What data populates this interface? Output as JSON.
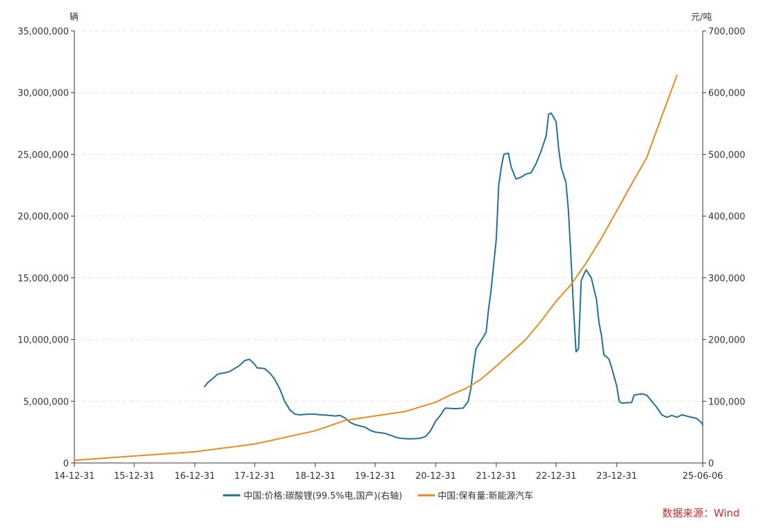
{
  "chart_data": {
    "type": "line",
    "left_axis_unit": "辆",
    "right_axis_unit": "元/吨",
    "left_ylim": [
      0,
      35000000
    ],
    "right_ylim": [
      0,
      700000
    ],
    "left_ticks": [
      "0",
      "5,000,000",
      "10,000,000",
      "15,000,000",
      "20,000,000",
      "25,000,000",
      "30,000,000",
      "35,000,000"
    ],
    "right_ticks": [
      "0",
      "100,000",
      "200,000",
      "300,000",
      "400,000",
      "500,000",
      "600,000",
      "700,000"
    ],
    "x_ticks": [
      "14-12-31",
      "15-12-31",
      "16-12-31",
      "17-12-31",
      "18-12-31",
      "19-12-31",
      "20-12-31",
      "21-12-31",
      "22-12-31",
      "23-12-31",
      "25-06-06"
    ],
    "grid": "horizontal-dashed",
    "legend_position": "bottom",
    "source": "数据来源：Wind",
    "series": [
      {
        "name": "中国:价格:碳酸锂(99.5%电,国产)(右轴)",
        "axis": "right",
        "color": "#1f6f96",
        "points": [
          [
            "2017-03-01",
            124000
          ],
          [
            "2017-03-20",
            130000
          ],
          [
            "2017-04-20",
            137000
          ],
          [
            "2017-05-20",
            144000
          ],
          [
            "2017-06-30",
            146000
          ],
          [
            "2017-07-31",
            148000
          ],
          [
            "2017-08-31",
            153000
          ],
          [
            "2017-09-30",
            158000
          ],
          [
            "2017-10-31",
            166000
          ],
          [
            "2017-11-30",
            168000
          ],
          [
            "2017-12-31",
            160000
          ],
          [
            "2018-01-15",
            154000
          ],
          [
            "2018-02-28",
            153000
          ],
          [
            "2018-03-31",
            146000
          ],
          [
            "2018-04-30",
            136000
          ],
          [
            "2018-05-31",
            120000
          ],
          [
            "2018-06-30",
            100000
          ],
          [
            "2018-07-31",
            86000
          ],
          [
            "2018-08-31",
            79000
          ],
          [
            "2018-09-30",
            78000
          ],
          [
            "2018-11-15",
            79000
          ],
          [
            "2018-12-31",
            79000
          ],
          [
            "2019-01-31",
            78000
          ],
          [
            "2019-03-31",
            77000
          ],
          [
            "2019-04-30",
            76000
          ],
          [
            "2019-05-31",
            77000
          ],
          [
            "2019-06-30",
            73000
          ],
          [
            "2019-07-31",
            66000
          ],
          [
            "2019-08-31",
            62000
          ],
          [
            "2019-09-30",
            60000
          ],
          [
            "2019-10-31",
            58000
          ],
          [
            "2019-11-30",
            53000
          ],
          [
            "2019-12-31",
            50000
          ],
          [
            "2020-02-28",
            48000
          ],
          [
            "2020-03-31",
            45000
          ],
          [
            "2020-04-30",
            42000
          ],
          [
            "2020-05-31",
            40000
          ],
          [
            "2020-07-31",
            39000
          ],
          [
            "2020-09-30",
            40000
          ],
          [
            "2020-10-31",
            43000
          ],
          [
            "2020-11-30",
            52000
          ],
          [
            "2020-12-31",
            68000
          ],
          [
            "2021-01-31",
            78000
          ],
          [
            "2021-02-15",
            85000
          ],
          [
            "2021-02-28",
            89000
          ],
          [
            "2021-04-30",
            88000
          ],
          [
            "2021-06-15",
            89000
          ],
          [
            "2021-07-15",
            100000
          ],
          [
            "2021-07-31",
            120000
          ],
          [
            "2021-08-15",
            155000
          ],
          [
            "2021-08-31",
            185000
          ],
          [
            "2021-09-30",
            198000
          ],
          [
            "2021-10-31",
            212000
          ],
          [
            "2021-11-15",
            250000
          ],
          [
            "2021-11-30",
            280000
          ],
          [
            "2021-12-15",
            320000
          ],
          [
            "2021-12-31",
            362000
          ],
          [
            "2022-01-15",
            450000
          ],
          [
            "2022-01-31",
            480000
          ],
          [
            "2022-02-15",
            500000
          ],
          [
            "2022-03-15",
            502000
          ],
          [
            "2022-03-31",
            480000
          ],
          [
            "2022-04-30",
            460000
          ],
          [
            "2022-05-31",
            463000
          ],
          [
            "2022-06-30",
            468000
          ],
          [
            "2022-07-31",
            470000
          ],
          [
            "2022-08-31",
            485000
          ],
          [
            "2022-09-30",
            505000
          ],
          [
            "2022-10-31",
            530000
          ],
          [
            "2022-11-15",
            565000
          ],
          [
            "2022-11-30",
            567000
          ],
          [
            "2022-12-31",
            553000
          ],
          [
            "2023-01-15",
            510000
          ],
          [
            "2023-01-31",
            478000
          ],
          [
            "2023-02-28",
            455000
          ],
          [
            "2023-03-15",
            410000
          ],
          [
            "2023-03-31",
            330000
          ],
          [
            "2023-04-15",
            250000
          ],
          [
            "2023-04-30",
            180000
          ],
          [
            "2023-05-15",
            185000
          ],
          [
            "2023-05-31",
            295000
          ],
          [
            "2023-06-15",
            305000
          ],
          [
            "2023-06-30",
            313000
          ],
          [
            "2023-07-31",
            300000
          ],
          [
            "2023-08-31",
            265000
          ],
          [
            "2023-09-15",
            228000
          ],
          [
            "2023-09-30",
            207000
          ],
          [
            "2023-10-15",
            175000
          ],
          [
            "2023-10-31",
            172000
          ],
          [
            "2023-11-15",
            168000
          ],
          [
            "2023-11-30",
            155000
          ],
          [
            "2023-12-31",
            125000
          ],
          [
            "2024-01-15",
            100000
          ],
          [
            "2024-01-31",
            97000
          ],
          [
            "2024-03-31",
            98000
          ],
          [
            "2024-04-15",
            110000
          ],
          [
            "2024-05-31",
            112000
          ],
          [
            "2024-06-30",
            110000
          ],
          [
            "2024-07-31",
            100000
          ],
          [
            "2024-08-31",
            90000
          ],
          [
            "2024-09-30",
            78000
          ],
          [
            "2024-10-31",
            74000
          ],
          [
            "2024-11-30",
            77000
          ],
          [
            "2024-12-31",
            74000
          ],
          [
            "2025-01-31",
            78000
          ],
          [
            "2025-02-28",
            76000
          ],
          [
            "2025-03-31",
            74000
          ],
          [
            "2025-04-30",
            72000
          ],
          [
            "2025-05-31",
            65000
          ],
          [
            "2025-06-06",
            61000
          ]
        ]
      },
      {
        "name": "中国:保有量:新能源汽车",
        "axis": "left",
        "color": "#e8891d",
        "points": [
          [
            "2014-12-31",
            220000
          ],
          [
            "2016-12-31",
            910000
          ],
          [
            "2017-12-31",
            1530000
          ],
          [
            "2018-12-31",
            2610000
          ],
          [
            "2019-06-30",
            3440000
          ],
          [
            "2019-12-31",
            3810000
          ],
          [
            "2020-06-30",
            4170000
          ],
          [
            "2020-12-31",
            4920000
          ],
          [
            "2021-03-31",
            5510000
          ],
          [
            "2021-06-30",
            6030000
          ],
          [
            "2021-09-30",
            6780000
          ],
          [
            "2021-12-31",
            7840000
          ],
          [
            "2022-03-31",
            8910000
          ],
          [
            "2022-06-30",
            10010000
          ],
          [
            "2022-09-30",
            11490000
          ],
          [
            "2022-12-31",
            13100000
          ],
          [
            "2023-03-31",
            14450000
          ],
          [
            "2023-06-30",
            16200000
          ],
          [
            "2023-09-30",
            18210000
          ],
          [
            "2023-12-31",
            20410000
          ],
          [
            "2024-03-31",
            22600000
          ],
          [
            "2024-06-30",
            24720000
          ],
          [
            "2024-09-30",
            28090000
          ],
          [
            "2024-12-31",
            31400000
          ]
        ]
      }
    ]
  }
}
